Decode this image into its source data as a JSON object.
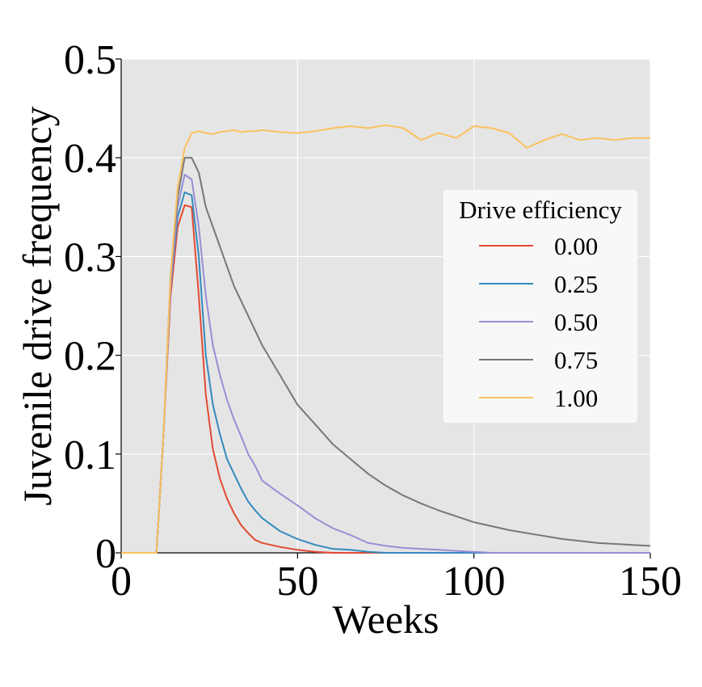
{
  "chart_data": {
    "type": "line",
    "title": "",
    "xlabel": "Weeks",
    "ylabel": "Juvenile drive frequency",
    "xlim": [
      0,
      150
    ],
    "ylim": [
      0,
      0.5
    ],
    "xticks": [
      0,
      50,
      100,
      150
    ],
    "xtick_labels": [
      "0",
      "50",
      "100",
      "150"
    ],
    "yticks": [
      0,
      0.1,
      0.2,
      0.3,
      0.4,
      0.5
    ],
    "ytick_labels": [
      "0",
      "0.1",
      "0.2",
      "0.3",
      "0.4",
      "0.5"
    ],
    "grid": true,
    "legend": {
      "title": "Drive efficiency",
      "placement": "center-right"
    },
    "x": [
      0,
      5,
      10,
      12,
      14,
      16,
      18,
      20,
      22,
      24,
      26,
      28,
      30,
      32,
      34,
      36,
      38,
      40,
      45,
      50,
      55,
      60,
      65,
      70,
      75,
      80,
      85,
      90,
      95,
      100,
      105,
      110,
      115,
      120,
      125,
      130,
      135,
      140,
      145,
      150
    ],
    "series": [
      {
        "name": "0.00",
        "color": "#E24A33",
        "values": [
          0,
          0,
          0,
          0.12,
          0.26,
          0.33,
          0.352,
          0.35,
          0.26,
          0.16,
          0.105,
          0.075,
          0.055,
          0.04,
          0.028,
          0.02,
          0.013,
          0.01,
          0.006,
          0.003,
          0.001,
          0,
          0,
          0,
          0,
          0,
          0,
          0,
          0,
          0,
          0,
          0,
          0,
          0,
          0,
          0,
          0,
          0,
          0,
          0
        ]
      },
      {
        "name": "0.25",
        "color": "#348ABD",
        "values": [
          0,
          0,
          0,
          0.12,
          0.27,
          0.34,
          0.365,
          0.362,
          0.3,
          0.2,
          0.15,
          0.12,
          0.095,
          0.08,
          0.065,
          0.052,
          0.043,
          0.035,
          0.022,
          0.014,
          0.008,
          0.004,
          0.003,
          0.001,
          0,
          0,
          0,
          0,
          0,
          0,
          0,
          0,
          0,
          0,
          0,
          0,
          0,
          0,
          0,
          0
        ]
      },
      {
        "name": "0.50",
        "color": "#988ED5",
        "values": [
          0,
          0,
          0,
          0.12,
          0.27,
          0.35,
          0.383,
          0.378,
          0.33,
          0.26,
          0.21,
          0.18,
          0.155,
          0.135,
          0.118,
          0.1,
          0.088,
          0.073,
          0.06,
          0.048,
          0.035,
          0.025,
          0.018,
          0.01,
          0.007,
          0.005,
          0.004,
          0.003,
          0.002,
          0.001,
          0,
          0,
          0,
          0,
          0,
          0,
          0,
          0,
          0,
          0
        ]
      },
      {
        "name": "0.75",
        "color": "#777777",
        "values": [
          0,
          0,
          0,
          0.12,
          0.28,
          0.36,
          0.4,
          0.4,
          0.385,
          0.35,
          0.33,
          0.31,
          0.29,
          0.27,
          0.255,
          0.24,
          0.225,
          0.21,
          0.18,
          0.15,
          0.13,
          0.11,
          0.095,
          0.08,
          0.068,
          0.058,
          0.05,
          0.043,
          0.037,
          0.031,
          0.027,
          0.023,
          0.02,
          0.017,
          0.014,
          0.012,
          0.01,
          0.009,
          0.008,
          0.007
        ]
      },
      {
        "name": "1.00",
        "color": "#FBC15E",
        "values": [
          0,
          0,
          0,
          0.12,
          0.28,
          0.37,
          0.41,
          0.425,
          0.427,
          0.425,
          0.424,
          0.426,
          0.427,
          0.428,
          0.426,
          0.427,
          0.427,
          0.428,
          0.426,
          0.425,
          0.427,
          0.43,
          0.432,
          0.43,
          0.433,
          0.43,
          0.418,
          0.425,
          0.42,
          0.432,
          0.43,
          0.425,
          0.41,
          0.418,
          0.424,
          0.418,
          0.42,
          0.418,
          0.42,
          0.42
        ]
      }
    ]
  }
}
